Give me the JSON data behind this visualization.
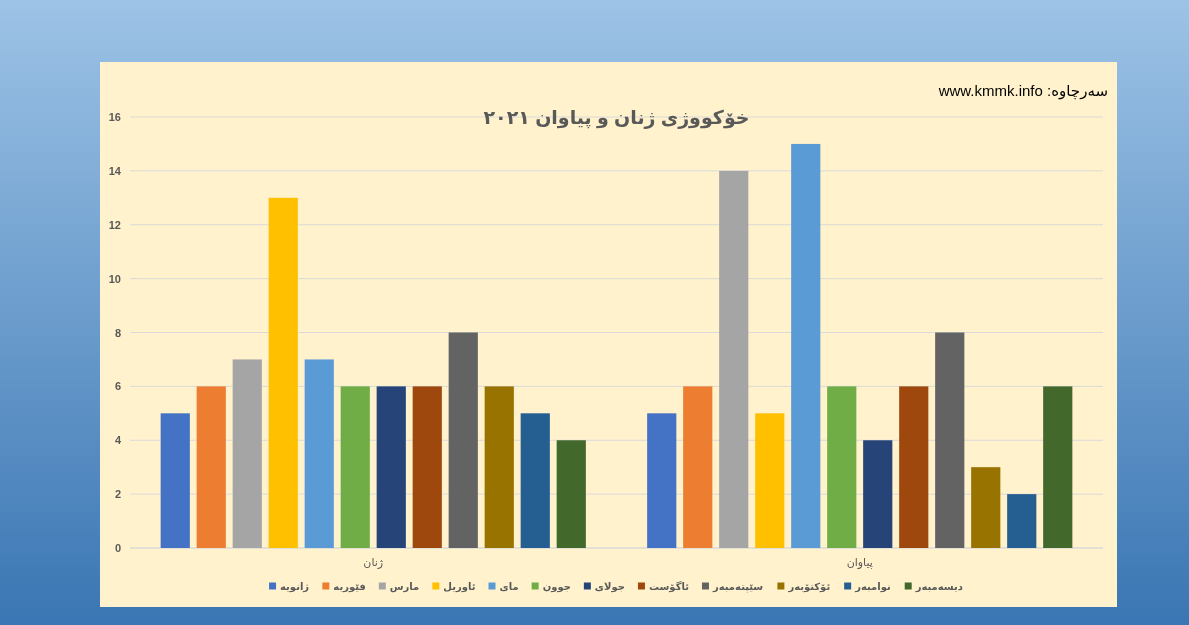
{
  "chart_data": {
    "type": "bar",
    "title": "خۆکووژی ژنان و پیاوان ٢٠٢١",
    "annotations": [
      "سەرچاوە: www.kmmk.info"
    ],
    "categories": [
      "ژنان",
      "پیاوان"
    ],
    "series": [
      {
        "name": "ژانویە",
        "color": "#4472c4",
        "values": [
          5,
          5
        ]
      },
      {
        "name": "فێوریە",
        "color": "#ed7d31",
        "values": [
          6,
          6
        ]
      },
      {
        "name": "مارس",
        "color": "#a5a5a5",
        "values": [
          7,
          14
        ]
      },
      {
        "name": "ئاوریل",
        "color": "#ffc000",
        "values": [
          13,
          5
        ]
      },
      {
        "name": "مای",
        "color": "#5b9bd5",
        "values": [
          7,
          15
        ]
      },
      {
        "name": "جوون",
        "color": "#70ad47",
        "values": [
          6,
          6
        ]
      },
      {
        "name": "جولای",
        "color": "#264478",
        "values": [
          6,
          4
        ]
      },
      {
        "name": "ئاگۆست",
        "color": "#9e480e",
        "values": [
          6,
          6
        ]
      },
      {
        "name": "سێپتەمبەر",
        "color": "#636363",
        "values": [
          8,
          8
        ]
      },
      {
        "name": "ئۆکتۆبەر",
        "color": "#997300",
        "values": [
          6,
          3
        ]
      },
      {
        "name": "نوامبەر",
        "color": "#255e91",
        "values": [
          5,
          2
        ]
      },
      {
        "name": "دیسەمبەر",
        "color": "#43682b",
        "values": [
          4,
          6
        ]
      }
    ],
    "ylim": [
      0,
      16
    ],
    "yticks": [
      0,
      2,
      4,
      6,
      8,
      10,
      12,
      14,
      16
    ],
    "grid": "y",
    "legend": "bottom"
  }
}
